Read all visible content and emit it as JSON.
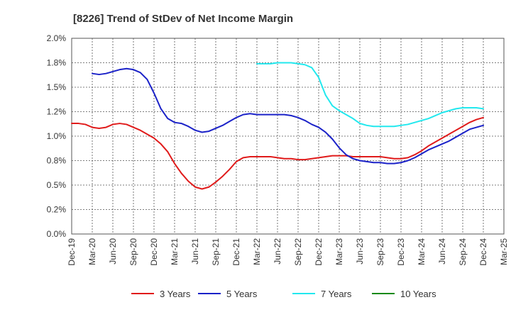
{
  "chart_data": {
    "type": "line",
    "title": "[8226]  Trend of StDev of Net Income Margin",
    "xlabel": "",
    "ylabel": "",
    "ylim": [
      0,
      2.0
    ],
    "y_ticks": [
      0,
      0.25,
      0.5,
      0.75,
      1.0,
      1.25,
      1.5,
      1.75,
      2.0
    ],
    "y_tick_labels": [
      "0.0%",
      "0.2%",
      "0.5%",
      "0.8%",
      "1.0%",
      "1.2%",
      "1.5%",
      "1.8%",
      "2.0%"
    ],
    "x_range": [
      "2019-12",
      "2025-03"
    ],
    "x_tick_labels": [
      "Dec-19",
      "Mar-20",
      "Jun-20",
      "Sep-20",
      "Dec-20",
      "Mar-21",
      "Jun-21",
      "Sep-21",
      "Dec-21",
      "Mar-22",
      "Jun-22",
      "Sep-22",
      "Dec-22",
      "Mar-23",
      "Jun-23",
      "Sep-23",
      "Dec-23",
      "Mar-24",
      "Jun-24",
      "Sep-24",
      "Dec-24",
      "Mar-25"
    ],
    "grid": true,
    "legend_position": "bottom",
    "series": [
      {
        "name": "3 Years",
        "color": "#e01b1b",
        "x": [
          "2019-12",
          "2020-01",
          "2020-02",
          "2020-03",
          "2020-04",
          "2020-05",
          "2020-06",
          "2020-07",
          "2020-08",
          "2020-09",
          "2020-10",
          "2020-11",
          "2020-12",
          "2021-01",
          "2021-02",
          "2021-03",
          "2021-04",
          "2021-05",
          "2021-06",
          "2021-07",
          "2021-08",
          "2021-09",
          "2021-10",
          "2021-11",
          "2021-12",
          "2022-01",
          "2022-02",
          "2022-03",
          "2022-04",
          "2022-05",
          "2022-06",
          "2022-07",
          "2022-08",
          "2022-09",
          "2022-10",
          "2022-11",
          "2022-12",
          "2023-01",
          "2023-02",
          "2023-03",
          "2023-04",
          "2023-05",
          "2023-06",
          "2023-07",
          "2023-08",
          "2023-09",
          "2023-10",
          "2023-11",
          "2023-12",
          "2024-01",
          "2024-02",
          "2024-03",
          "2024-04",
          "2024-05",
          "2024-06",
          "2024-07",
          "2024-08",
          "2024-09",
          "2024-10",
          "2024-11",
          "2024-12"
        ],
        "values": [
          1.13,
          1.13,
          1.12,
          1.09,
          1.08,
          1.09,
          1.12,
          1.13,
          1.12,
          1.09,
          1.06,
          1.02,
          0.98,
          0.92,
          0.84,
          0.72,
          0.62,
          0.54,
          0.48,
          0.46,
          0.48,
          0.53,
          0.59,
          0.66,
          0.74,
          0.78,
          0.79,
          0.79,
          0.79,
          0.79,
          0.78,
          0.77,
          0.77,
          0.76,
          0.76,
          0.77,
          0.78,
          0.79,
          0.8,
          0.8,
          0.8,
          0.79,
          0.79,
          0.79,
          0.79,
          0.79,
          0.78,
          0.77,
          0.77,
          0.78,
          0.81,
          0.85,
          0.9,
          0.94,
          0.98,
          1.02,
          1.06,
          1.1,
          1.14,
          1.17,
          1.19
        ]
      },
      {
        "name": "5 Years",
        "color": "#1b22c8",
        "x": [
          "2020-03",
          "2020-04",
          "2020-05",
          "2020-06",
          "2020-07",
          "2020-08",
          "2020-09",
          "2020-10",
          "2020-11",
          "2020-12",
          "2021-01",
          "2021-02",
          "2021-03",
          "2021-04",
          "2021-05",
          "2021-06",
          "2021-07",
          "2021-08",
          "2021-09",
          "2021-10",
          "2021-11",
          "2021-12",
          "2022-01",
          "2022-02",
          "2022-03",
          "2022-04",
          "2022-05",
          "2022-06",
          "2022-07",
          "2022-08",
          "2022-09",
          "2022-10",
          "2022-11",
          "2022-12",
          "2023-01",
          "2023-02",
          "2023-03",
          "2023-04",
          "2023-05",
          "2023-06",
          "2023-07",
          "2023-08",
          "2023-09",
          "2023-10",
          "2023-11",
          "2023-12",
          "2024-01",
          "2024-02",
          "2024-03",
          "2024-04",
          "2024-05",
          "2024-06",
          "2024-07",
          "2024-08",
          "2024-09",
          "2024-10",
          "2024-11",
          "2024-12"
        ],
        "values": [
          1.64,
          1.63,
          1.64,
          1.66,
          1.68,
          1.69,
          1.68,
          1.65,
          1.58,
          1.44,
          1.28,
          1.18,
          1.14,
          1.13,
          1.1,
          1.06,
          1.04,
          1.05,
          1.08,
          1.11,
          1.15,
          1.19,
          1.22,
          1.23,
          1.22,
          1.22,
          1.22,
          1.22,
          1.22,
          1.21,
          1.19,
          1.16,
          1.12,
          1.09,
          1.04,
          0.97,
          0.88,
          0.81,
          0.77,
          0.75,
          0.74,
          0.73,
          0.73,
          0.72,
          0.72,
          0.73,
          0.75,
          0.78,
          0.82,
          0.86,
          0.89,
          0.92,
          0.95,
          0.99,
          1.03,
          1.07,
          1.09,
          1.11
        ]
      },
      {
        "name": "7 Years",
        "color": "#22e8ee",
        "x": [
          "2022-03",
          "2022-04",
          "2022-05",
          "2022-06",
          "2022-07",
          "2022-08",
          "2022-09",
          "2022-10",
          "2022-11",
          "2022-12",
          "2023-01",
          "2023-02",
          "2023-03",
          "2023-04",
          "2023-05",
          "2023-06",
          "2023-07",
          "2023-08",
          "2023-09",
          "2023-10",
          "2023-11",
          "2023-12",
          "2024-01",
          "2024-02",
          "2024-03",
          "2024-04",
          "2024-05",
          "2024-06",
          "2024-07",
          "2024-08",
          "2024-09",
          "2024-10",
          "2024-11",
          "2024-12"
        ],
        "values": [
          1.74,
          1.74,
          1.74,
          1.75,
          1.75,
          1.75,
          1.74,
          1.73,
          1.7,
          1.6,
          1.42,
          1.31,
          1.26,
          1.22,
          1.18,
          1.13,
          1.11,
          1.1,
          1.1,
          1.1,
          1.1,
          1.11,
          1.12,
          1.14,
          1.16,
          1.18,
          1.21,
          1.24,
          1.26,
          1.28,
          1.29,
          1.29,
          1.29,
          1.28
        ]
      },
      {
        "name": "10 Years",
        "color": "#1a8a1a",
        "x": [],
        "values": []
      }
    ]
  }
}
